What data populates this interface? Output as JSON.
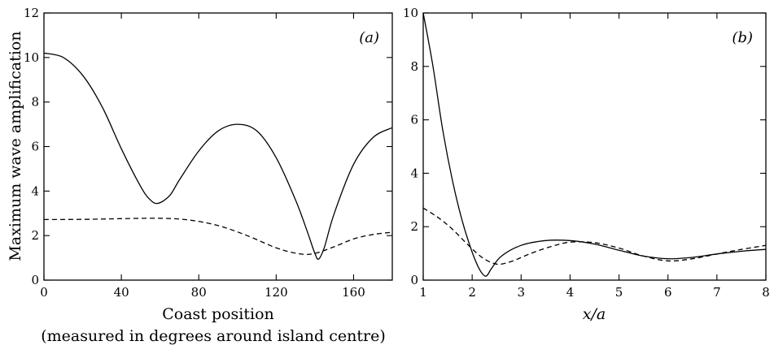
{
  "chart_data": [
    {
      "type": "line",
      "panel_label": "(a)",
      "ylabel": "Maximum wave amplification",
      "xlabel": "Coast position",
      "xlabel_sub": "(measured in degrees around island centre)",
      "xlim": [
        0,
        180
      ],
      "ylim": [
        0,
        12
      ],
      "xticks": [
        0,
        40,
        80,
        120,
        160
      ],
      "yticks": [
        0,
        2,
        4,
        6,
        8,
        10,
        12
      ],
      "series": [
        {
          "style": "solid",
          "points": [
            [
              0,
              10.2
            ],
            [
              10,
              10.0
            ],
            [
              20,
              9.2
            ],
            [
              30,
              7.8
            ],
            [
              40,
              5.9
            ],
            [
              50,
              4.2
            ],
            [
              55,
              3.6
            ],
            [
              59,
              3.45
            ],
            [
              65,
              3.8
            ],
            [
              70,
              4.5
            ],
            [
              80,
              5.8
            ],
            [
              90,
              6.7
            ],
            [
              100,
              7.0
            ],
            [
              110,
              6.7
            ],
            [
              120,
              5.5
            ],
            [
              130,
              3.6
            ],
            [
              136,
              2.2
            ],
            [
              140,
              1.2
            ],
            [
              142,
              0.95
            ],
            [
              145,
              1.5
            ],
            [
              150,
              3.0
            ],
            [
              160,
              5.2
            ],
            [
              170,
              6.4
            ],
            [
              180,
              6.85
            ]
          ]
        },
        {
          "style": "dashed",
          "points": [
            [
              0,
              2.72
            ],
            [
              20,
              2.73
            ],
            [
              40,
              2.76
            ],
            [
              60,
              2.78
            ],
            [
              75,
              2.7
            ],
            [
              90,
              2.45
            ],
            [
              105,
              2.0
            ],
            [
              120,
              1.45
            ],
            [
              132,
              1.18
            ],
            [
              140,
              1.2
            ],
            [
              150,
              1.5
            ],
            [
              160,
              1.85
            ],
            [
              170,
              2.05
            ],
            [
              180,
              2.15
            ]
          ]
        }
      ]
    },
    {
      "type": "line",
      "panel_label": "(b)",
      "xlabel": "x/a",
      "xlim": [
        1,
        8
      ],
      "ylim": [
        0,
        10
      ],
      "xticks": [
        1,
        2,
        3,
        4,
        5,
        6,
        7,
        8
      ],
      "yticks": [
        0,
        2,
        4,
        6,
        8,
        10
      ],
      "series": [
        {
          "style": "solid",
          "points": [
            [
              1,
              10.0
            ],
            [
              1.2,
              8.0
            ],
            [
              1.4,
              5.6
            ],
            [
              1.6,
              3.7
            ],
            [
              1.8,
              2.2
            ],
            [
              2.0,
              1.05
            ],
            [
              2.15,
              0.4
            ],
            [
              2.28,
              0.15
            ],
            [
              2.4,
              0.45
            ],
            [
              2.6,
              0.9
            ],
            [
              3.0,
              1.3
            ],
            [
              3.5,
              1.48
            ],
            [
              4.0,
              1.48
            ],
            [
              4.5,
              1.35
            ],
            [
              5.0,
              1.12
            ],
            [
              5.5,
              0.9
            ],
            [
              6.0,
              0.8
            ],
            [
              6.5,
              0.85
            ],
            [
              7.0,
              0.98
            ],
            [
              7.5,
              1.08
            ],
            [
              8.0,
              1.15
            ]
          ]
        },
        {
          "style": "dashed",
          "points": [
            [
              1,
              2.7
            ],
            [
              1.3,
              2.35
            ],
            [
              1.6,
              1.9
            ],
            [
              1.9,
              1.35
            ],
            [
              2.2,
              0.85
            ],
            [
              2.5,
              0.6
            ],
            [
              2.8,
              0.7
            ],
            [
              3.2,
              1.0
            ],
            [
              3.6,
              1.25
            ],
            [
              4.0,
              1.42
            ],
            [
              4.5,
              1.4
            ],
            [
              5.0,
              1.2
            ],
            [
              5.5,
              0.9
            ],
            [
              6.0,
              0.72
            ],
            [
              6.5,
              0.8
            ],
            [
              7.0,
              0.98
            ],
            [
              7.5,
              1.15
            ],
            [
              8.0,
              1.3
            ]
          ]
        }
      ]
    }
  ]
}
